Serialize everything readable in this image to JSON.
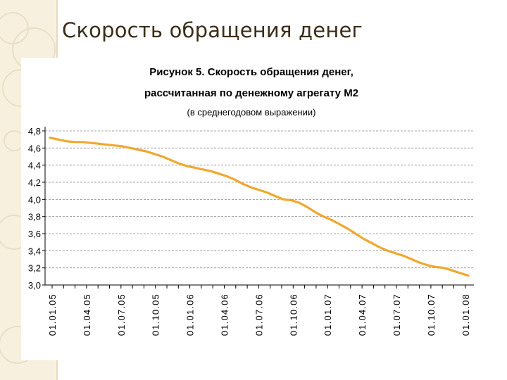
{
  "slide": {
    "title": "Скорость обращения денег"
  },
  "chart_data": {
    "type": "line",
    "title_lines": [
      "Рисунок 5. Скорость обращения денег,",
      "рассчитанная по денежному агрегату М2"
    ],
    "subtitle": "(в среднегодовом выражении)",
    "xlabel": "",
    "ylabel": "",
    "ylim": [
      3.0,
      4.8
    ],
    "yticks": [
      "3,0",
      "3,2",
      "3,4",
      "3,6",
      "3,8",
      "4,0",
      "4,2",
      "4,4",
      "4,6",
      "4,8"
    ],
    "xticks": [
      "01.01.05",
      "01.04.05",
      "01.07.05",
      "01.10.05",
      "01.01.06",
      "01.04.06",
      "01.07.06",
      "01.10.06",
      "01.01.07",
      "01.04.07",
      "01.07.07",
      "01.10.07",
      "01.01.08"
    ],
    "grid": true,
    "line_color": "#f0a830",
    "series": [
      {
        "values": [
          4.72,
          4.7,
          4.68,
          4.67,
          4.67,
          4.66,
          4.65,
          4.64,
          4.63,
          4.62,
          4.6,
          4.58,
          4.56,
          4.53,
          4.5,
          4.46,
          4.42,
          4.39,
          4.37,
          4.35,
          4.33,
          4.3,
          4.27,
          4.23,
          4.18,
          4.14,
          4.11,
          4.08,
          4.04,
          4.0,
          3.99,
          3.96,
          3.91,
          3.85,
          3.8,
          3.76,
          3.71,
          3.66,
          3.6,
          3.54,
          3.49,
          3.44,
          3.4,
          3.37,
          3.34,
          3.3,
          3.26,
          3.23,
          3.21,
          3.2,
          3.17,
          3.14,
          3.11
        ]
      }
    ]
  }
}
